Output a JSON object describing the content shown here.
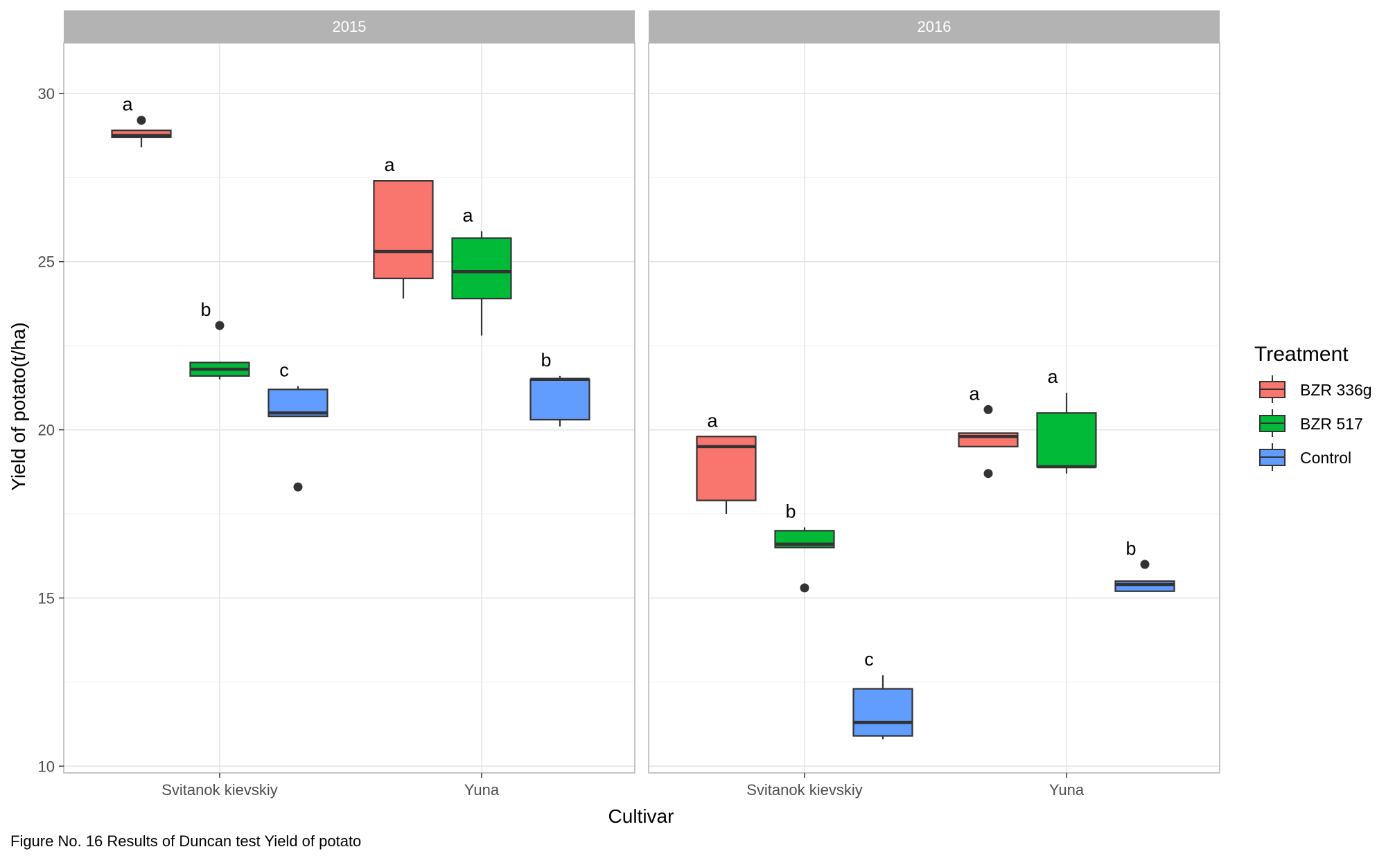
{
  "chart_data": {
    "type": "boxplot",
    "ylabel": "Yield of potato(t/ha)",
    "xlabel": "Cultivar",
    "ylim": [
      9.8,
      31.5
    ],
    "yticks": [
      10,
      15,
      20,
      25,
      30
    ],
    "grid": true,
    "facets": [
      "2015",
      "2016"
    ],
    "categories": [
      "Svitanok kievskiy",
      "Yuna"
    ],
    "legend": {
      "title": "Treatment",
      "position": "right",
      "items": [
        {
          "label": "BZR 336g",
          "color": "#F8766D"
        },
        {
          "label": "BZR 517",
          "color": "#00BA38"
        },
        {
          "label": "Control",
          "color": "#619CFF"
        }
      ]
    },
    "boxes": [
      {
        "facet": "2015",
        "cultivar": "Svitanok kievskiy",
        "treatment": "BZR 336g",
        "min": 28.4,
        "q1": 28.7,
        "median": 28.75,
        "q3": 28.9,
        "max": 28.9,
        "outliers": [
          29.2
        ],
        "letter": "a"
      },
      {
        "facet": "2015",
        "cultivar": "Svitanok kievskiy",
        "treatment": "BZR 517",
        "min": 21.5,
        "q1": 21.6,
        "median": 21.8,
        "q3": 22.0,
        "max": 22.0,
        "outliers": [
          23.1
        ],
        "letter": "b"
      },
      {
        "facet": "2015",
        "cultivar": "Svitanok kievskiy",
        "treatment": "Control",
        "min": 20.4,
        "q1": 20.4,
        "median": 20.5,
        "q3": 21.2,
        "max": 21.3,
        "outliers": [
          18.3
        ],
        "letter": "c"
      },
      {
        "facet": "2015",
        "cultivar": "Yuna",
        "treatment": "BZR 336g",
        "min": 23.9,
        "q1": 24.5,
        "median": 25.3,
        "q3": 27.4,
        "max": 27.4,
        "outliers": [],
        "letter": "a"
      },
      {
        "facet": "2015",
        "cultivar": "Yuna",
        "treatment": "BZR 517",
        "min": 22.8,
        "q1": 23.9,
        "median": 24.7,
        "q3": 25.7,
        "max": 25.9,
        "outliers": [],
        "letter": "a"
      },
      {
        "facet": "2015",
        "cultivar": "Yuna",
        "treatment": "Control",
        "min": 20.1,
        "q1": 20.3,
        "median": 21.5,
        "q3": 21.5,
        "max": 21.6,
        "outliers": [],
        "letter": "b"
      },
      {
        "facet": "2016",
        "cultivar": "Svitanok kievskiy",
        "treatment": "BZR 336g",
        "min": 17.5,
        "q1": 17.9,
        "median": 19.5,
        "q3": 19.8,
        "max": 19.8,
        "outliers": [],
        "letter": "a"
      },
      {
        "facet": "2016",
        "cultivar": "Svitanok kievskiy",
        "treatment": "BZR 517",
        "min": 16.5,
        "q1": 16.5,
        "median": 16.6,
        "q3": 17.0,
        "max": 17.1,
        "outliers": [
          15.3
        ],
        "letter": "b"
      },
      {
        "facet": "2016",
        "cultivar": "Svitanok kievskiy",
        "treatment": "Control",
        "min": 10.8,
        "q1": 10.9,
        "median": 11.3,
        "q3": 12.3,
        "max": 12.7,
        "outliers": [],
        "letter": "c"
      },
      {
        "facet": "2016",
        "cultivar": "Yuna",
        "treatment": "BZR 336g",
        "min": 19.5,
        "q1": 19.5,
        "median": 19.8,
        "q3": 19.9,
        "max": 19.9,
        "outliers": [
          20.6,
          18.7
        ],
        "letter": "a"
      },
      {
        "facet": "2016",
        "cultivar": "Yuna",
        "treatment": "BZR 517",
        "min": 18.7,
        "q1": 18.9,
        "median": 18.9,
        "q3": 20.5,
        "max": 21.1,
        "outliers": [],
        "letter": "a"
      },
      {
        "facet": "2016",
        "cultivar": "Yuna",
        "treatment": "Control",
        "min": 15.2,
        "q1": 15.2,
        "median": 15.4,
        "q3": 15.5,
        "max": 15.5,
        "outliers": [
          16.0
        ],
        "letter": "b"
      }
    ],
    "caption": "Figure No. 16 Results of Duncan test Yield of potato"
  }
}
